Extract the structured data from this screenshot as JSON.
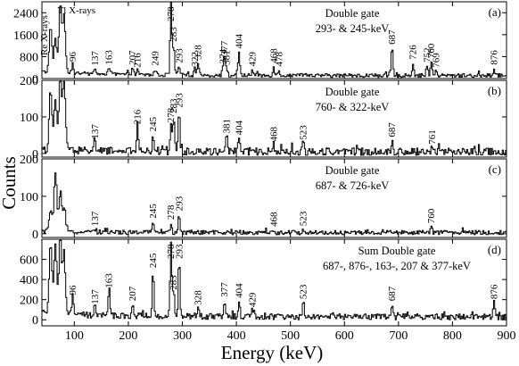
{
  "figure": {
    "xlabel": "Energy (keV)",
    "ylabel": "Counts"
  },
  "chart_data": {
    "type": "line",
    "x_axis": {
      "range": [
        40,
        900
      ],
      "ticks": [
        100,
        200,
        300,
        400,
        500,
        600,
        700,
        800,
        900
      ],
      "tick_labels": [
        "100",
        "200",
        "300",
        "400",
        "500",
        "600",
        "700",
        "800",
        "900"
      ]
    },
    "panels": [
      {
        "id": "a",
        "letter": "(a)",
        "gate_title": "Double gate",
        "gate_energies": "293- & 245-keV",
        "ylim": [
          0,
          2800
        ],
        "yticks": [
          0,
          800,
          1600,
          2400
        ],
        "ytick_labels": [
          "0",
          "800",
          "1600",
          "2400"
        ],
        "xray_labels": [
          "Re X-rays",
          "Tl X-rays"
        ],
        "baseline": 110,
        "noise": 70,
        "peaks": [
          {
            "x": 55,
            "h": 1650,
            "w": 2.5
          },
          {
            "x": 64,
            "h": 1250,
            "w": 2.5
          },
          {
            "x": 73,
            "h": 2550,
            "w": 2.5
          },
          {
            "x": 80,
            "h": 2050,
            "w": 2.5
          },
          {
            "x": 96,
            "h": 380
          },
          {
            "x": 137,
            "h": 230
          },
          {
            "x": 163,
            "h": 260
          },
          {
            "x": 207,
            "h": 250
          },
          {
            "x": 216,
            "h": 160
          },
          {
            "x": 249,
            "h": 230
          },
          {
            "x": 278,
            "h": 2700
          },
          {
            "x": 283,
            "h": 1100
          },
          {
            "x": 293,
            "h": 320
          },
          {
            "x": 322,
            "h": 200
          },
          {
            "x": 328,
            "h": 450
          },
          {
            "x": 374,
            "h": 300
          },
          {
            "x": 377,
            "h": 600
          },
          {
            "x": 381,
            "h": 250
          },
          {
            "x": 404,
            "h": 850
          },
          {
            "x": 429,
            "h": 200
          },
          {
            "x": 468,
            "h": 320
          },
          {
            "x": 478,
            "h": 200
          },
          {
            "x": 687,
            "h": 1000
          },
          {
            "x": 726,
            "h": 450
          },
          {
            "x": 752,
            "h": 350
          },
          {
            "x": 760,
            "h": 500
          },
          {
            "x": 769,
            "h": 160
          },
          {
            "x": 876,
            "h": 260
          }
        ],
        "labels": [
          {
            "x": 96,
            "text": "96"
          },
          {
            "x": 137,
            "text": "137"
          },
          {
            "x": 163,
            "text": "163"
          },
          {
            "x": 207,
            "text": "207"
          },
          {
            "x": 216,
            "text": "216"
          },
          {
            "x": 249,
            "text": "249"
          },
          {
            "x": 278,
            "text": "278"
          },
          {
            "x": 283,
            "text": "283"
          },
          {
            "x": 293,
            "text": "293"
          },
          {
            "x": 322,
            "text": "322"
          },
          {
            "x": 328,
            "text": "328"
          },
          {
            "x": 374,
            "text": "374"
          },
          {
            "x": 377,
            "text": "377"
          },
          {
            "x": 381,
            "text": "381"
          },
          {
            "x": 404,
            "text": "404"
          },
          {
            "x": 429,
            "text": "429"
          },
          {
            "x": 468,
            "text": "468"
          },
          {
            "x": 478,
            "text": "478"
          },
          {
            "x": 687,
            "text": "687"
          },
          {
            "x": 726,
            "text": "726"
          },
          {
            "x": 752,
            "text": "752"
          },
          {
            "x": 760,
            "text": "760"
          },
          {
            "x": 769,
            "text": "769"
          },
          {
            "x": 876,
            "text": "876"
          }
        ]
      },
      {
        "id": "b",
        "letter": "(b)",
        "gate_title": "Double gate",
        "gate_energies": "760- & 322-keV",
        "ylim": [
          -10,
          200
        ],
        "yticks": [
          0,
          100,
          200
        ],
        "ytick_labels": [
          "0",
          "100",
          "200"
        ],
        "baseline": 5,
        "noise": 10,
        "peaks": [
          {
            "x": 55,
            "h": 160,
            "w": 2.5
          },
          {
            "x": 64,
            "h": 140,
            "w": 2.5
          },
          {
            "x": 73,
            "h": 200,
            "w": 2.5
          },
          {
            "x": 80,
            "h": 190,
            "w": 2.5
          },
          {
            "x": 137,
            "h": 25
          },
          {
            "x": 216,
            "h": 65
          },
          {
            "x": 245,
            "h": 45
          },
          {
            "x": 278,
            "h": 70
          },
          {
            "x": 283,
            "h": 95
          },
          {
            "x": 293,
            "h": 110
          },
          {
            "x": 381,
            "h": 40
          },
          {
            "x": 404,
            "h": 35
          },
          {
            "x": 468,
            "h": 18
          },
          {
            "x": 523,
            "h": 22
          },
          {
            "x": 687,
            "h": 30
          },
          {
            "x": 761,
            "h": 10
          }
        ],
        "labels": [
          {
            "x": 137,
            "text": "137"
          },
          {
            "x": 216,
            "text": "216"
          },
          {
            "x": 245,
            "text": "245"
          },
          {
            "x": 278,
            "text": "278"
          },
          {
            "x": 283,
            "text": "283"
          },
          {
            "x": 293,
            "text": "293"
          },
          {
            "x": 381,
            "text": "381"
          },
          {
            "x": 404,
            "text": "404"
          },
          {
            "x": 468,
            "text": "468"
          },
          {
            "x": 523,
            "text": "523"
          },
          {
            "x": 687,
            "text": "687"
          },
          {
            "x": 761,
            "text": "761"
          }
        ]
      },
      {
        "id": "c",
        "letter": "(c)",
        "gate_title": "Double gate",
        "gate_energies": "687- & 726-keV",
        "ylim": [
          -10,
          200
        ],
        "yticks": [
          0,
          100,
          200
        ],
        "ytick_labels": [
          "0",
          "100",
          "200"
        ],
        "baseline": 3,
        "noise": 6,
        "peaks": [
          {
            "x": 55,
            "h": 60,
            "w": 2.5
          },
          {
            "x": 64,
            "h": 160,
            "w": 2.5
          },
          {
            "x": 73,
            "h": 100,
            "w": 2.5
          },
          {
            "x": 80,
            "h": 60,
            "w": 2.5
          },
          {
            "x": 137,
            "h": 8
          },
          {
            "x": 245,
            "h": 28
          },
          {
            "x": 278,
            "h": 25
          },
          {
            "x": 293,
            "h": 48
          },
          {
            "x": 468,
            "h": 6
          },
          {
            "x": 523,
            "h": 8
          },
          {
            "x": 760,
            "h": 15
          }
        ],
        "labels": [
          {
            "x": 137,
            "text": "137"
          },
          {
            "x": 245,
            "text": "245"
          },
          {
            "x": 278,
            "text": "278"
          },
          {
            "x": 293,
            "text": "293"
          },
          {
            "x": 468,
            "text": "468"
          },
          {
            "x": 523,
            "text": "523"
          },
          {
            "x": 760,
            "text": "760"
          }
        ]
      },
      {
        "id": "d",
        "letter": "(d)",
        "gate_title": "Sum Double gate",
        "gate_energies": "687-, 876-, 163-, 207 & 377-keV",
        "ylim": [
          -60,
          800
        ],
        "yticks": [
          0,
          200,
          400,
          600
        ],
        "ytick_labels": [
          "0",
          "200",
          "400",
          "600"
        ],
        "baseline": 30,
        "noise": 30,
        "peaks": [
          {
            "x": 55,
            "h": 720,
            "w": 2.5
          },
          {
            "x": 64,
            "h": 700,
            "w": 2.5
          },
          {
            "x": 73,
            "h": 750,
            "w": 2.5
          },
          {
            "x": 80,
            "h": 600,
            "w": 2.5
          },
          {
            "x": 96,
            "h": 180
          },
          {
            "x": 137,
            "h": 90
          },
          {
            "x": 163,
            "h": 250
          },
          {
            "x": 207,
            "h": 120
          },
          {
            "x": 245,
            "h": 450
          },
          {
            "x": 278,
            "h": 750
          },
          {
            "x": 283,
            "h": 230
          },
          {
            "x": 293,
            "h": 560
          },
          {
            "x": 328,
            "h": 80
          },
          {
            "x": 377,
            "h": 160
          },
          {
            "x": 404,
            "h": 150
          },
          {
            "x": 429,
            "h": 60
          },
          {
            "x": 523,
            "h": 140
          },
          {
            "x": 687,
            "h": 120
          },
          {
            "x": 876,
            "h": 140
          }
        ],
        "labels": [
          {
            "x": 96,
            "text": "96"
          },
          {
            "x": 137,
            "text": "137"
          },
          {
            "x": 163,
            "text": "163"
          },
          {
            "x": 207,
            "text": "207"
          },
          {
            "x": 245,
            "text": "245"
          },
          {
            "x": 278,
            "text": "278"
          },
          {
            "x": 283,
            "text": "283"
          },
          {
            "x": 293,
            "text": "293"
          },
          {
            "x": 328,
            "text": "328"
          },
          {
            "x": 377,
            "text": "377"
          },
          {
            "x": 404,
            "text": "404"
          },
          {
            "x": 429,
            "text": "429"
          },
          {
            "x": 523,
            "text": "523"
          },
          {
            "x": 687,
            "text": "687"
          },
          {
            "x": 876,
            "text": "876"
          }
        ]
      }
    ]
  }
}
